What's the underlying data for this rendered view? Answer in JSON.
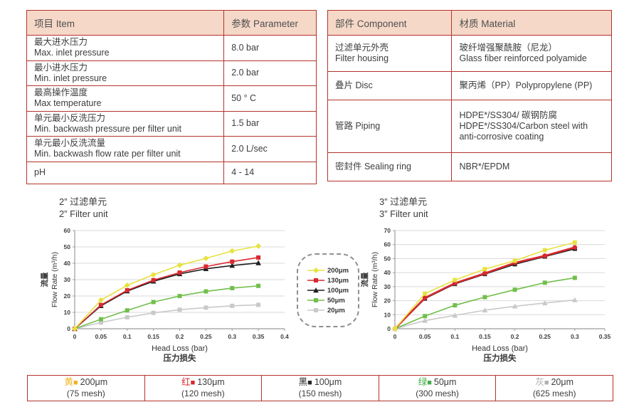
{
  "colors": {
    "table_border": "#b5332b",
    "header_bg": "#f5d8c7",
    "grid": "#d9d9d9",
    "axis": "#9c9c9c",
    "text": "#3f3f3f"
  },
  "spec_table": {
    "headers": [
      "项目 Item",
      "参数 Parameter"
    ],
    "rows": [
      {
        "lines": [
          "最大进水压力",
          "Max. inlet pressure"
        ],
        "value": "8.0 bar"
      },
      {
        "lines": [
          "最小进水压力",
          "Min. inlet pressure"
        ],
        "value": "2.0 bar"
      },
      {
        "lines": [
          "最高操作温度",
          "Max temperature"
        ],
        "value": "50 ° C"
      },
      {
        "lines": [
          "单元最小反洗压力",
          "Min. backwash pressure per filter unit"
        ],
        "value": "1.5 bar"
      },
      {
        "lines": [
          "单元最小反洗流量",
          "Min. backwash flow rate per filter unit"
        ],
        "value": "2.0 L/sec"
      },
      {
        "lines": [
          "pH"
        ],
        "value": "4 - 14"
      }
    ]
  },
  "material_table": {
    "headers": [
      "部件 Component",
      "材质 Material"
    ],
    "rows": [
      {
        "component": [
          "过滤单元外壳",
          "Filter housing"
        ],
        "material": [
          "玻纤增强聚酰胺（尼龙）",
          "Glass fiber reinforced polyamide"
        ]
      },
      {
        "component": [
          "叠片 Disc"
        ],
        "material": [
          "聚丙烯（PP）Polypropylene (PP)"
        ]
      },
      {
        "component": [
          "管路 Piping"
        ],
        "material": [
          "HDPE*/SS304/ 碳钢防腐",
          "HDPE*/SS304/Carbon steel with anti-corrosive coating"
        ]
      },
      {
        "component": [
          "密封件 Sealing ring"
        ],
        "material": [
          "NBR*/EPDM"
        ]
      }
    ]
  },
  "chart_data": [
    {
      "type": "line",
      "title_zh": "2”  过滤单元",
      "title_en": "2”  Filter unit",
      "ylabel_zh": "流量",
      "ylabel": "Flow Rate (m³/h)",
      "xlabel": "Head Loss (bar)",
      "xlabel_zh": "压力损失",
      "xlim": [
        0,
        0.4
      ],
      "ylim": [
        0,
        60
      ],
      "yticks": [
        0,
        10,
        20,
        30,
        40,
        50,
        60
      ],
      "xticks": [
        "0",
        "0.05",
        "0.1",
        "0.15",
        "0.2",
        "0.25",
        "0.3",
        "0.35",
        "0.4"
      ],
      "xtick_values": [
        0,
        0.05,
        0.1,
        0.15,
        0.2,
        0.25,
        0.3,
        0.35,
        0.4
      ],
      "x": [
        0,
        0.05,
        0.1,
        0.15,
        0.2,
        0.25,
        0.3,
        0.35
      ],
      "grid": true,
      "legend_position": "right-outside",
      "series": [
        {
          "name": "200μm",
          "color": "#e7e23e",
          "marker": "diamond",
          "width": 1.6,
          "values": [
            0,
            17.5,
            26.5,
            33,
            38.8,
            43,
            47.5,
            50.5
          ]
        },
        {
          "name": "130μm",
          "color": "#d9292f",
          "marker": "square",
          "width": 1.6,
          "values": [
            0,
            14.5,
            23.5,
            29.7,
            34.3,
            38,
            41,
            43.5
          ]
        },
        {
          "name": "100μm",
          "color": "#1f1f1f",
          "marker": "triangle",
          "width": 1.6,
          "values": [
            0,
            14,
            23,
            29,
            33.5,
            36.6,
            38.6,
            40.2
          ]
        },
        {
          "name": "50μm",
          "color": "#71bf4b",
          "marker": "square",
          "width": 1.6,
          "values": [
            0,
            5.8,
            11.2,
            16.3,
            20,
            22.8,
            24.8,
            26.2
          ]
        },
        {
          "name": "20μm",
          "color": "#c9c9c9",
          "marker": "square",
          "width": 1.6,
          "values": [
            0,
            3.8,
            7,
            9.7,
            11.6,
            12.9,
            14,
            14.6
          ]
        }
      ]
    },
    {
      "type": "line",
      "title_zh": "3”  过滤单元",
      "title_en": "3”  Filter unit",
      "ylabel_zh": "流量",
      "ylabel": "Flow Rate (m³/h)",
      "xlabel": "Head Loss (bar)",
      "xlabel_zh": "压力损失",
      "xlim": [
        0,
        0.35
      ],
      "ylim": [
        0,
        70
      ],
      "yticks": [
        0,
        10,
        20,
        30,
        40,
        50,
        60,
        70
      ],
      "xticks": [
        "0",
        "0.05",
        "0.1",
        "0.15",
        "0.2",
        "0.25",
        "0.3",
        "0.35"
      ],
      "xtick_values": [
        0,
        0.05,
        0.1,
        0.15,
        0.2,
        0.25,
        0.3,
        0.35
      ],
      "x": [
        0,
        0.05,
        0.1,
        0.15,
        0.2,
        0.25,
        0.3
      ],
      "grid": true,
      "series": [
        {
          "name": "200μm",
          "color": "#e7e23e",
          "marker": "square",
          "width": 1.6,
          "values": [
            0,
            25,
            34.7,
            42.5,
            48.5,
            56,
            61.5
          ]
        },
        {
          "name": "130μm",
          "color": "#d9292f",
          "marker": "circle",
          "width": 2.6,
          "values": [
            0,
            22,
            32.5,
            39.5,
            47,
            52,
            58
          ]
        },
        {
          "name": "100μm",
          "color": "#1f1f1f",
          "marker": "square",
          "width": 1.8,
          "values": [
            0,
            21.5,
            32,
            39,
            46,
            51.5,
            57
          ]
        },
        {
          "name": "50μm",
          "color": "#71bf4b",
          "marker": "square",
          "width": 1.6,
          "values": [
            0,
            9,
            16.7,
            22.5,
            27.8,
            32.8,
            36.3
          ]
        },
        {
          "name": "20μm",
          "color": "#c9c9c9",
          "marker": "triangle",
          "width": 1.6,
          "values": [
            0,
            5.8,
            9.5,
            13.2,
            16,
            18.3,
            20.5
          ]
        }
      ]
    }
  ],
  "side_legend": {
    "items": [
      {
        "label": "200μm",
        "color": "#e7e23e",
        "marker": "diamond"
      },
      {
        "label": "130μm",
        "color": "#d9292f",
        "marker": "square"
      },
      {
        "label": "100μm",
        "color": "#1f1f1f",
        "marker": "triangle"
      },
      {
        "label": "50μm",
        "color": "#71bf4b",
        "marker": "square"
      },
      {
        "label": "20μm",
        "color": "#c9c9c9",
        "marker": "square"
      }
    ]
  },
  "bottom_legend": {
    "cells": [
      {
        "color_char": "黄",
        "color": "#f0b422",
        "label": "200μm",
        "mesh": "(75 mesh)"
      },
      {
        "color_char": "红",
        "color": "#d9262c",
        "label": "130μm",
        "mesh": "(120 mesh)"
      },
      {
        "color_char": "黑",
        "color": "#262626",
        "label": "100μm",
        "mesh": "(150 mesh)"
      },
      {
        "color_char": "绿",
        "color": "#41ad49",
        "label": "50μm",
        "mesh": "(300 mesh)"
      },
      {
        "color_char": "灰",
        "color": "#b0b0b0",
        "label": "20μm",
        "mesh": "(625 mesh)"
      }
    ]
  }
}
